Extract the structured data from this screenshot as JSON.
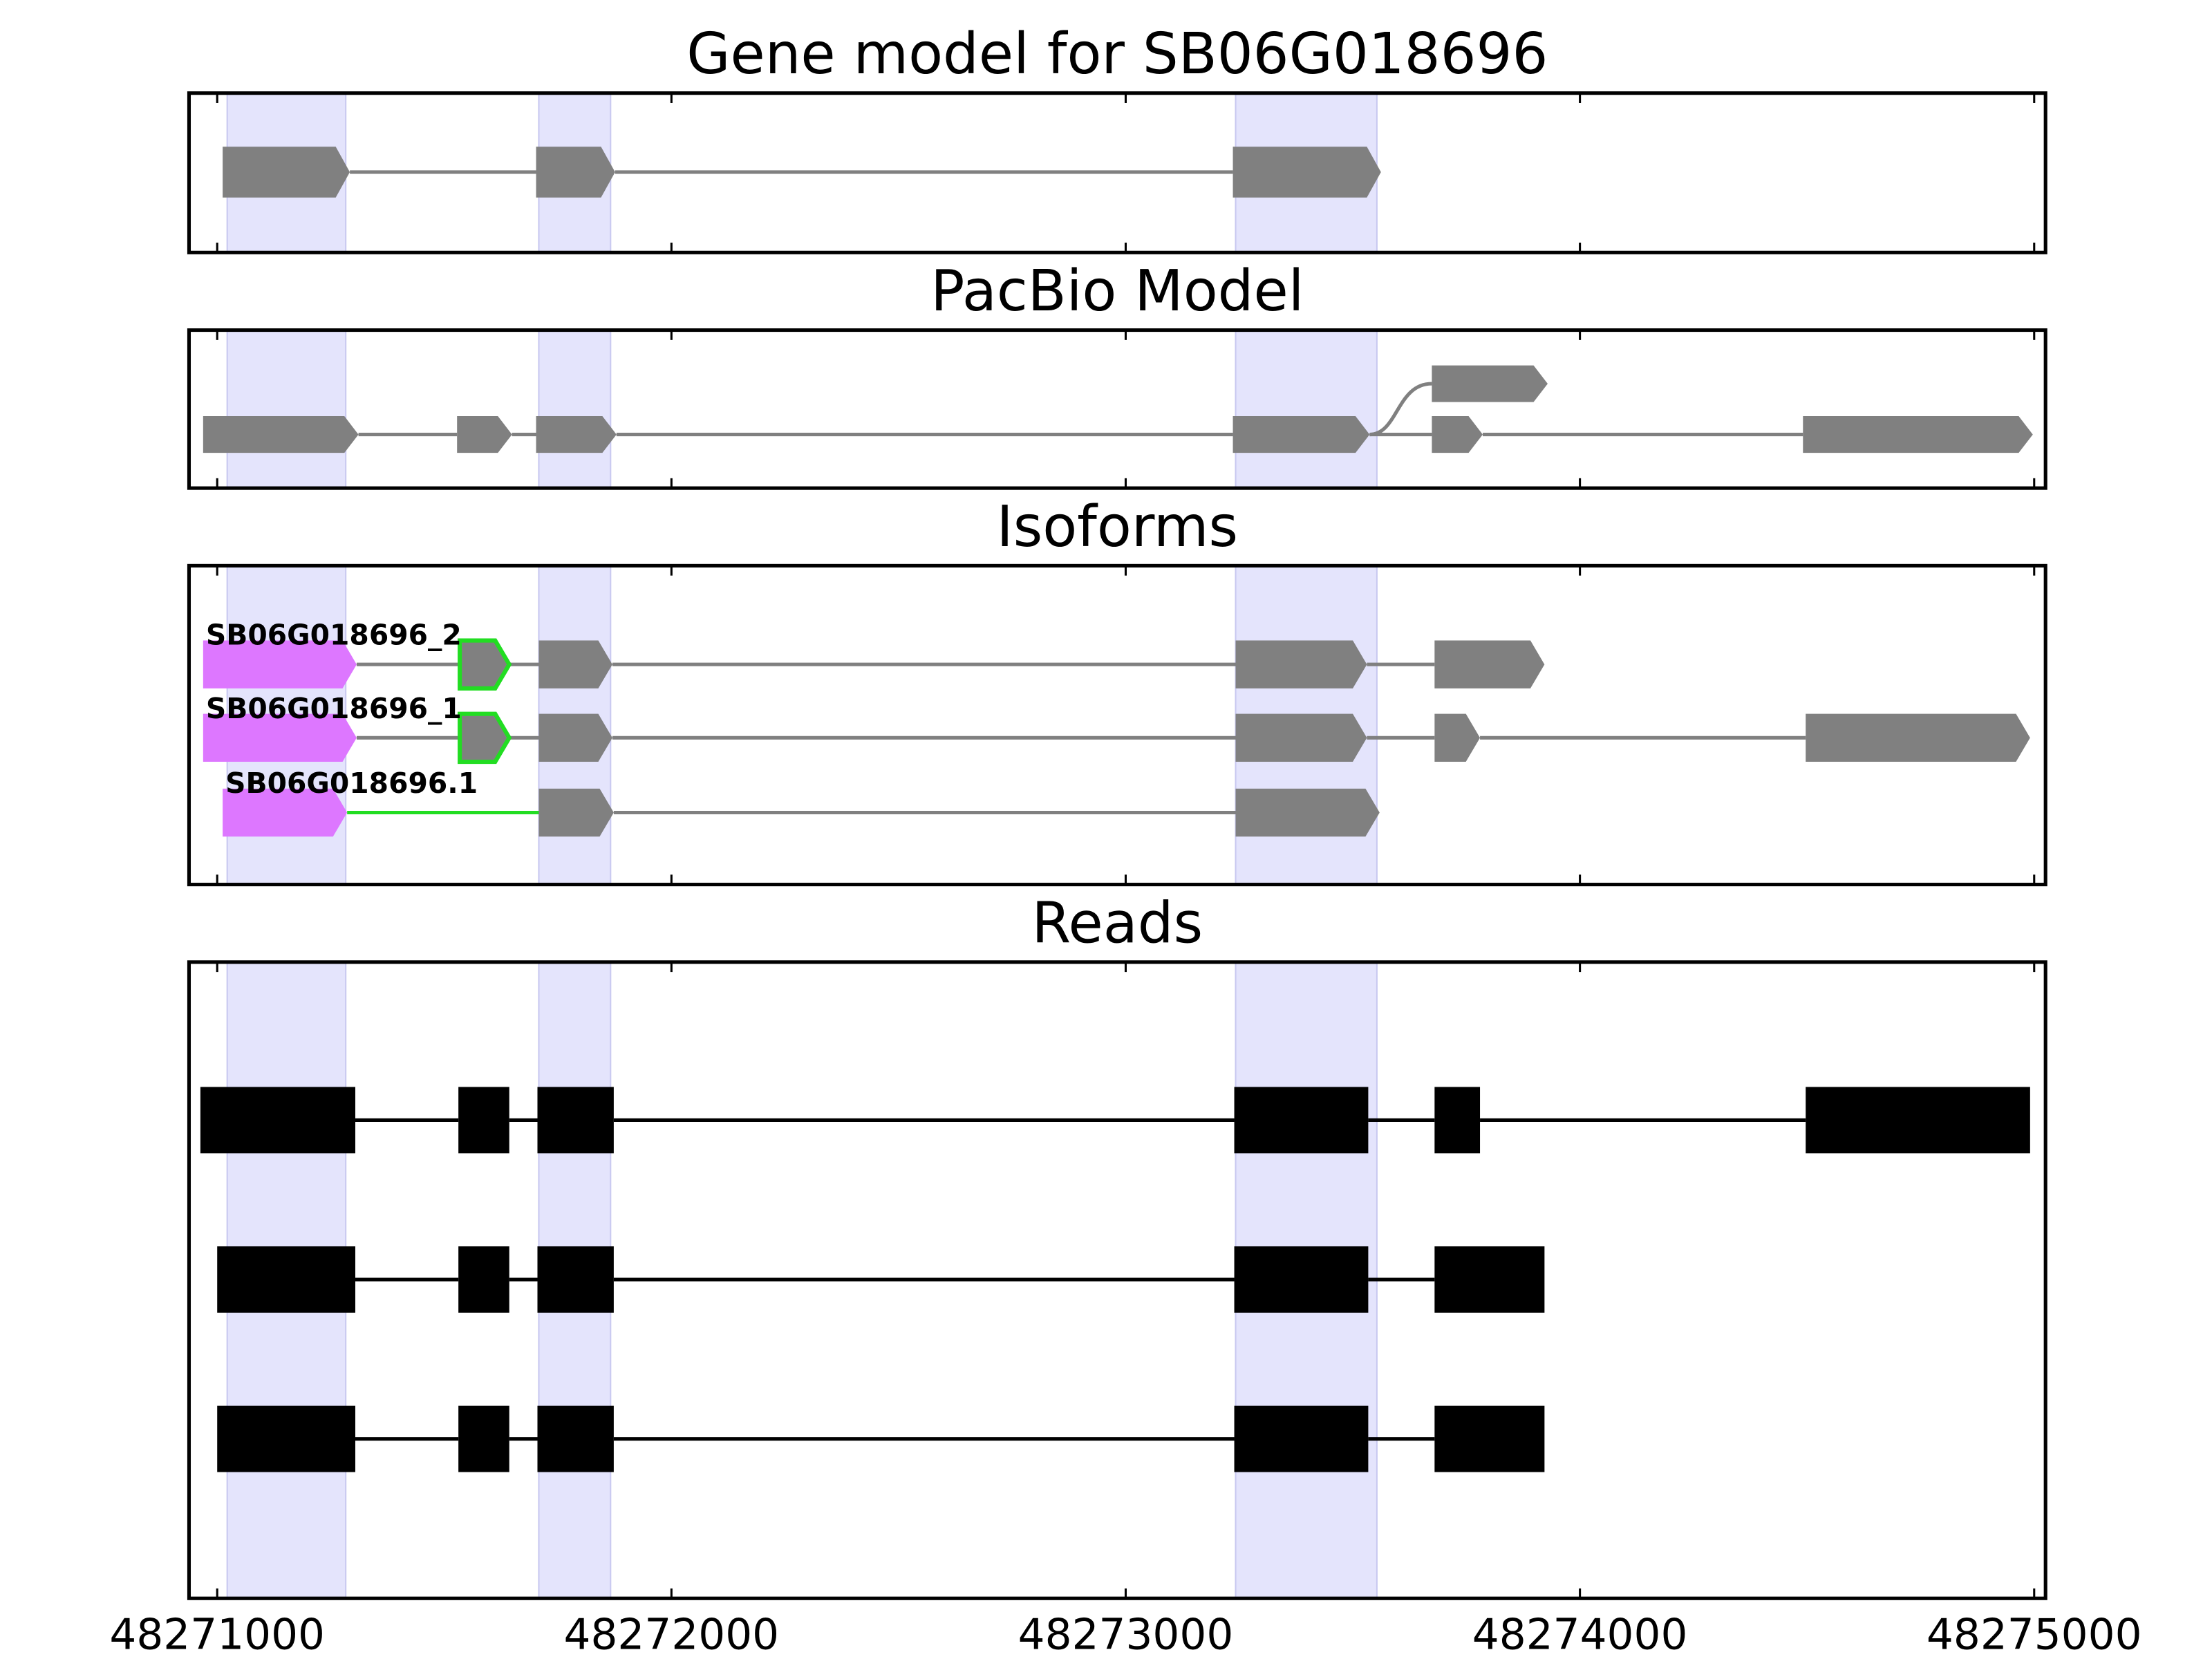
{
  "chart_data": {
    "type": "gene-model",
    "xlim": [
      48270938,
      48275025
    ],
    "xticks": [
      48271000,
      48272000,
      48273000,
      48274000,
      48275000
    ],
    "highlight_color": "#e4e4fc",
    "highlights": [
      [
        48271022,
        48271283
      ],
      [
        48271708,
        48271866
      ],
      [
        48273242,
        48273553
      ]
    ],
    "panels": [
      {
        "title": "Gene model for SB06G018696",
        "style": "arrow",
        "color": "#808080",
        "features": [
          {
            "exons": [
              [
                48271012,
                48271292
              ],
              [
                48271702,
                48271876
              ],
              [
                48273236,
                48273562
              ]
            ]
          }
        ]
      },
      {
        "title": "PacBio Model",
        "style": "arrow",
        "color": "#808080",
        "features": [
          {
            "exons": [
              [
                48270969,
                48271311
              ],
              [
                48271528,
                48271649
              ],
              [
                48271702,
                48271879
              ],
              [
                48273236,
                48273537
              ],
              [
                48273674,
                48273786
              ],
              [
                48274491,
                48274997
              ]
            ]
          },
          {
            "exons": [
              [
                48273674,
                48273929
              ]
            ],
            "branch_from": 48273537
          }
        ]
      },
      {
        "title": "Isoforms",
        "style": "arrow",
        "color": "#808080",
        "features": [
          {
            "name": "SB06G018696_2",
            "start_color": "#dd77ff",
            "edge": {
              "index": 1,
              "color": "#22dd22"
            },
            "exons": [
              [
                48270969,
                48271307
              ],
              [
                48271534,
                48271643
              ],
              [
                48271708,
                48271870
              ],
              [
                48273242,
                48273531
              ],
              [
                48273680,
                48273922
              ]
            ]
          },
          {
            "name": "SB06G018696_1",
            "start_color": "#dd77ff",
            "edge": {
              "index": 1,
              "color": "#22dd22"
            },
            "exons": [
              [
                48270969,
                48271307
              ],
              [
                48271534,
                48271643
              ],
              [
                48271708,
                48271870
              ],
              [
                48273242,
                48273531
              ],
              [
                48273680,
                48273780
              ],
              [
                48274497,
                48274991
              ]
            ]
          },
          {
            "name": "SB06G018696.1",
            "start_color": "#dd77ff",
            "link": {
              "index": 0,
              "color": "#22dd22"
            },
            "exons": [
              [
                48271012,
                48271286
              ],
              [
                48271708,
                48271873
              ],
              [
                48273242,
                48273559
              ]
            ]
          }
        ]
      },
      {
        "title": "Reads",
        "style": "block",
        "color": "#000000",
        "features": [
          {
            "exons": [
              [
                48270963,
                48271304
              ],
              [
                48271531,
                48271643
              ],
              [
                48271705,
                48271873
              ],
              [
                48273239,
                48273534
              ],
              [
                48273680,
                48273780
              ],
              [
                48274497,
                48274991
              ]
            ]
          },
          {
            "exons": [
              [
                48271000,
                48271304
              ],
              [
                48271531,
                48271643
              ],
              [
                48271705,
                48271873
              ],
              [
                48273239,
                48273534
              ],
              [
                48273680,
                48273922
              ]
            ]
          },
          {
            "exons": [
              [
                48271000,
                48271304
              ],
              [
                48271531,
                48271643
              ],
              [
                48271705,
                48271873
              ],
              [
                48273239,
                48273534
              ],
              [
                48273680,
                48273922
              ]
            ]
          }
        ]
      }
    ]
  }
}
